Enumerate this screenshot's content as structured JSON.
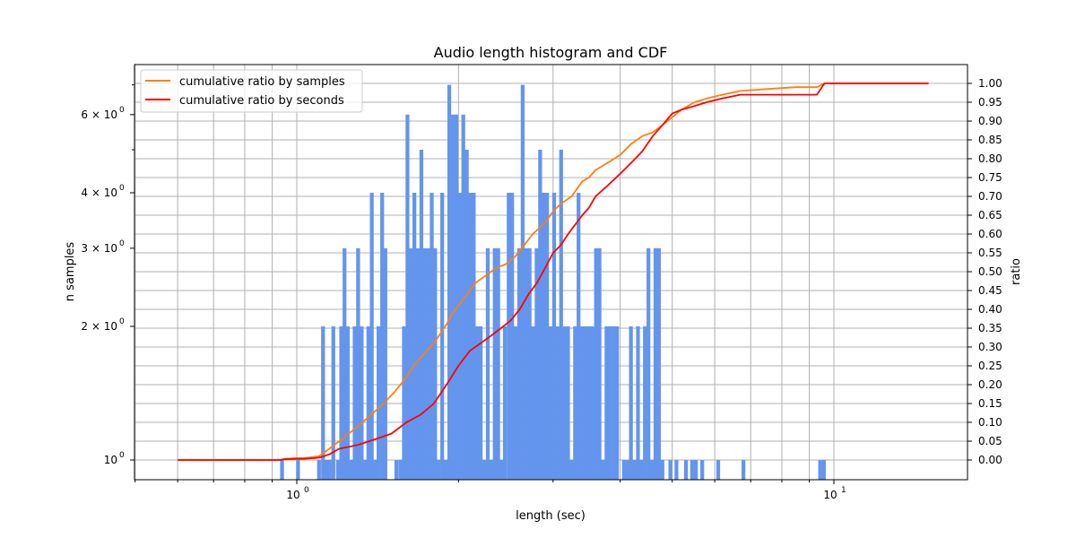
{
  "chart_data": {
    "type": "bar+line",
    "title": "Audio length histogram and CDF",
    "xlabel": "length (sec)",
    "ylabel": "n samples",
    "ylabel_right": "ratio",
    "xscale": "log",
    "yscale": "log",
    "xlim": [
      0.5,
      17.7
    ],
    "ylim": [
      0.9,
      7.8
    ],
    "ylim_right": [
      -0.05,
      1.05
    ],
    "grid": true,
    "legend_position": "upper left",
    "x_tick_labels": [
      {
        "value": 1,
        "label": "10",
        "exp": "0"
      },
      {
        "value": 10,
        "label": "10",
        "exp": "1"
      }
    ],
    "y_tick_labels": [
      {
        "value": 1,
        "mant": "",
        "label": "10",
        "exp": "0"
      },
      {
        "value": 2,
        "mant": "2×",
        "label": "10",
        "exp": "0"
      },
      {
        "value": 3,
        "mant": "3×",
        "label": "10",
        "exp": "0"
      },
      {
        "value": 4,
        "mant": "4×",
        "label": "10",
        "exp": "0"
      },
      {
        "value": 6,
        "mant": "6×",
        "label": "10",
        "exp": "0"
      }
    ],
    "y_right_ticks": [
      "0.00",
      "0.05",
      "0.10",
      "0.15",
      "0.20",
      "0.25",
      "0.30",
      "0.35",
      "0.40",
      "0.45",
      "0.50",
      "0.55",
      "0.60",
      "0.65",
      "0.70",
      "0.75",
      "0.80",
      "0.85",
      "0.90",
      "0.95",
      "1.00"
    ],
    "legend": [
      {
        "label": "cumulative ratio by samples",
        "color": "#ff7f0e"
      },
      {
        "label": "cumulative ratio by seconds",
        "color": "#ff0000"
      }
    ],
    "histogram": {
      "color": "#6495ed",
      "log_bin_width": 0.0071,
      "bins_x_sec_count": [
        [
          0.931,
          1
        ],
        [
          0.997,
          1
        ],
        [
          1.091,
          1
        ],
        [
          1.11,
          2
        ],
        [
          1.126,
          1
        ],
        [
          1.142,
          1
        ],
        [
          1.16,
          2
        ],
        [
          1.183,
          1
        ],
        [
          1.2,
          2
        ],
        [
          1.217,
          3
        ],
        [
          1.234,
          2
        ],
        [
          1.252,
          1
        ],
        [
          1.271,
          2
        ],
        [
          1.29,
          3
        ],
        [
          1.31,
          2
        ],
        [
          1.329,
          1
        ],
        [
          1.348,
          2
        ],
        [
          1.368,
          4
        ],
        [
          1.388,
          1
        ],
        [
          1.408,
          2
        ],
        [
          1.43,
          4
        ],
        [
          1.45,
          3
        ],
        [
          1.52,
          1
        ],
        [
          1.546,
          1
        ],
        [
          1.57,
          2
        ],
        [
          1.594,
          6
        ],
        [
          1.617,
          3
        ],
        [
          1.642,
          4
        ],
        [
          1.667,
          3
        ],
        [
          1.692,
          5
        ],
        [
          1.717,
          3
        ],
        [
          1.743,
          3
        ],
        [
          1.769,
          4
        ],
        [
          1.795,
          3
        ],
        [
          1.822,
          1
        ],
        [
          1.85,
          4
        ],
        [
          1.878,
          1
        ],
        [
          1.907,
          7
        ],
        [
          1.936,
          6
        ],
        [
          1.965,
          6
        ],
        [
          1.995,
          4
        ],
        [
          2.025,
          6
        ],
        [
          2.056,
          5
        ],
        [
          2.087,
          4
        ],
        [
          2.118,
          4
        ],
        [
          2.15,
          2
        ],
        [
          2.182,
          2
        ],
        [
          2.215,
          1
        ],
        [
          2.249,
          3
        ],
        [
          2.283,
          1
        ],
        [
          2.317,
          3
        ],
        [
          2.352,
          3
        ],
        [
          2.388,
          1
        ],
        [
          2.42,
          2
        ],
        [
          2.46,
          4
        ],
        [
          2.497,
          4
        ],
        [
          2.535,
          2
        ],
        [
          2.573,
          3
        ],
        [
          2.612,
          7
        ],
        [
          2.651,
          3
        ],
        [
          2.691,
          3
        ],
        [
          2.732,
          2
        ],
        [
          2.773,
          3
        ],
        [
          2.815,
          5
        ],
        [
          2.857,
          4
        ],
        [
          2.9,
          4
        ],
        [
          2.944,
          2
        ],
        [
          2.989,
          4
        ],
        [
          3.034,
          2
        ],
        [
          3.08,
          5
        ],
        [
          3.126,
          2
        ],
        [
          3.173,
          2
        ],
        [
          3.221,
          1
        ],
        [
          3.27,
          2
        ],
        [
          3.319,
          4
        ],
        [
          3.369,
          2
        ],
        [
          3.42,
          2
        ],
        [
          3.472,
          2
        ],
        [
          3.524,
          2
        ],
        [
          3.577,
          3
        ],
        [
          3.631,
          3
        ],
        [
          3.686,
          1
        ],
        [
          3.742,
          2
        ],
        [
          3.798,
          2
        ],
        [
          3.856,
          2
        ],
        [
          3.914,
          2
        ],
        [
          4.032,
          1
        ],
        [
          4.093,
          1
        ],
        [
          4.155,
          2
        ],
        [
          4.218,
          1
        ],
        [
          4.282,
          2
        ],
        [
          4.346,
          1
        ],
        [
          4.412,
          2
        ],
        [
          4.479,
          3
        ],
        [
          4.546,
          1
        ],
        [
          4.615,
          3
        ],
        [
          4.685,
          3
        ],
        [
          4.755,
          1
        ],
        [
          4.92,
          1
        ],
        [
          5.05,
          1
        ],
        [
          5.26,
          1
        ],
        [
          5.4,
          1
        ],
        [
          5.49,
          1
        ],
        [
          5.64,
          1
        ],
        [
          6.04,
          1
        ],
        [
          6.73,
          1
        ],
        [
          9.35,
          1
        ],
        [
          9.5,
          1
        ]
      ]
    },
    "series": [
      {
        "name": "cumulative ratio by samples",
        "color": "#ff7f0e",
        "x": [
          0.6,
          0.93,
          0.95,
          1.0,
          1.03,
          1.1,
          1.15,
          1.2,
          1.25,
          1.3,
          1.35,
          1.4,
          1.45,
          1.52,
          1.6,
          1.65,
          1.72,
          1.8,
          1.9,
          1.95,
          2.0,
          2.05,
          2.15,
          2.25,
          2.35,
          2.45,
          2.55,
          2.65,
          2.75,
          2.9,
          3.0,
          3.1,
          3.25,
          3.4,
          3.5,
          3.6,
          3.8,
          4.0,
          4.2,
          4.4,
          4.6,
          4.8,
          5.0,
          5.2,
          5.5,
          5.8,
          6.2,
          6.7,
          7.5,
          8.5,
          9.3,
          9.6,
          15.0
        ],
        "y": [
          0.0,
          0.0,
          0.003,
          0.005,
          0.005,
          0.01,
          0.03,
          0.05,
          0.07,
          0.09,
          0.11,
          0.13,
          0.15,
          0.18,
          0.22,
          0.25,
          0.28,
          0.31,
          0.36,
          0.39,
          0.41,
          0.43,
          0.47,
          0.49,
          0.51,
          0.52,
          0.54,
          0.57,
          0.6,
          0.63,
          0.66,
          0.68,
          0.7,
          0.74,
          0.75,
          0.77,
          0.79,
          0.81,
          0.84,
          0.86,
          0.87,
          0.89,
          0.91,
          0.93,
          0.95,
          0.96,
          0.97,
          0.98,
          0.985,
          0.99,
          0.99,
          1.0,
          1.0
        ]
      },
      {
        "name": "cumulative ratio by seconds",
        "color": "#ff0000",
        "x": [
          0.6,
          0.93,
          0.95,
          1.0,
          1.03,
          1.1,
          1.15,
          1.2,
          1.3,
          1.4,
          1.5,
          1.6,
          1.7,
          1.8,
          1.9,
          2.0,
          2.1,
          2.2,
          2.3,
          2.4,
          2.5,
          2.6,
          2.7,
          2.8,
          2.9,
          3.0,
          3.1,
          3.2,
          3.4,
          3.5,
          3.6,
          3.8,
          4.0,
          4.2,
          4.4,
          4.6,
          4.8,
          5.0,
          5.2,
          5.5,
          5.8,
          6.2,
          6.7,
          7.5,
          8.5,
          9.3,
          9.6,
          15.0
        ],
        "y": [
          0.0,
          0.0,
          0.002,
          0.003,
          0.003,
          0.006,
          0.015,
          0.03,
          0.04,
          0.055,
          0.07,
          0.1,
          0.12,
          0.15,
          0.2,
          0.25,
          0.29,
          0.31,
          0.33,
          0.35,
          0.37,
          0.4,
          0.44,
          0.47,
          0.51,
          0.55,
          0.57,
          0.6,
          0.65,
          0.67,
          0.7,
          0.73,
          0.76,
          0.79,
          0.82,
          0.86,
          0.89,
          0.92,
          0.93,
          0.94,
          0.95,
          0.96,
          0.97,
          0.97,
          0.97,
          0.97,
          1.0,
          1.0
        ]
      }
    ]
  }
}
